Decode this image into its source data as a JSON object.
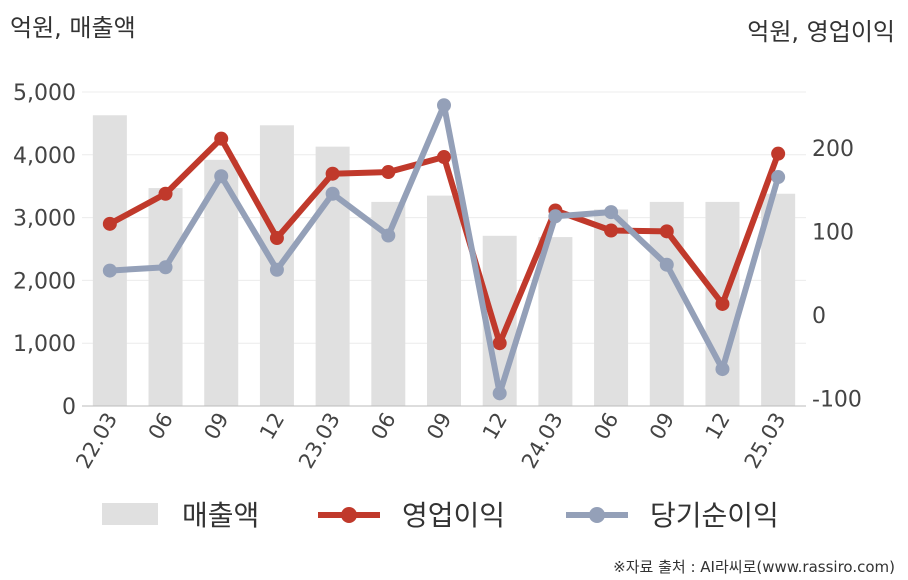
{
  "chart_data": {
    "type": "bar+line",
    "units": {
      "left": "억원, 매출액",
      "right": "억원, 영업이익"
    },
    "categories": [
      "22.03",
      "06",
      "09",
      "12",
      "23.03",
      "06",
      "09",
      "12",
      "24.03",
      "06",
      "09",
      "12",
      "25.03"
    ],
    "left_axis": {
      "ylim": [
        0,
        5000
      ],
      "ticks": [
        "0",
        "1,000",
        "2,000",
        "3,000",
        "4,000",
        "5,000"
      ]
    },
    "right_axis": {
      "ylim": [
        -100,
        275
      ],
      "ticks": [
        "-100",
        "0",
        "100",
        "200"
      ]
    },
    "series": [
      {
        "name": "매출액",
        "type": "bar",
        "axis": "left",
        "color": "#e0e0e0",
        "values": [
          4630,
          3470,
          3920,
          4470,
          4130,
          3250,
          3350,
          2710,
          2690,
          3130,
          3250,
          3250,
          3380
        ]
      },
      {
        "name": "영업이익",
        "type": "line",
        "axis": "right",
        "color": "#c0392b",
        "values": [
          108,
          144,
          210,
          91,
          168,
          170,
          188,
          -35,
          124,
          100,
          99,
          12,
          192
        ]
      },
      {
        "name": "당기순이익",
        "type": "line",
        "axis": "right",
        "color": "#94a0b8",
        "values": [
          52,
          56,
          165,
          53,
          144,
          94,
          250,
          -95,
          117,
          122,
          59,
          -66,
          164
        ]
      }
    ],
    "legend": {
      "placement": "bottom"
    },
    "grid": true
  },
  "source": "※자료 출처 : AI라씨로(www.rassiro.com)"
}
